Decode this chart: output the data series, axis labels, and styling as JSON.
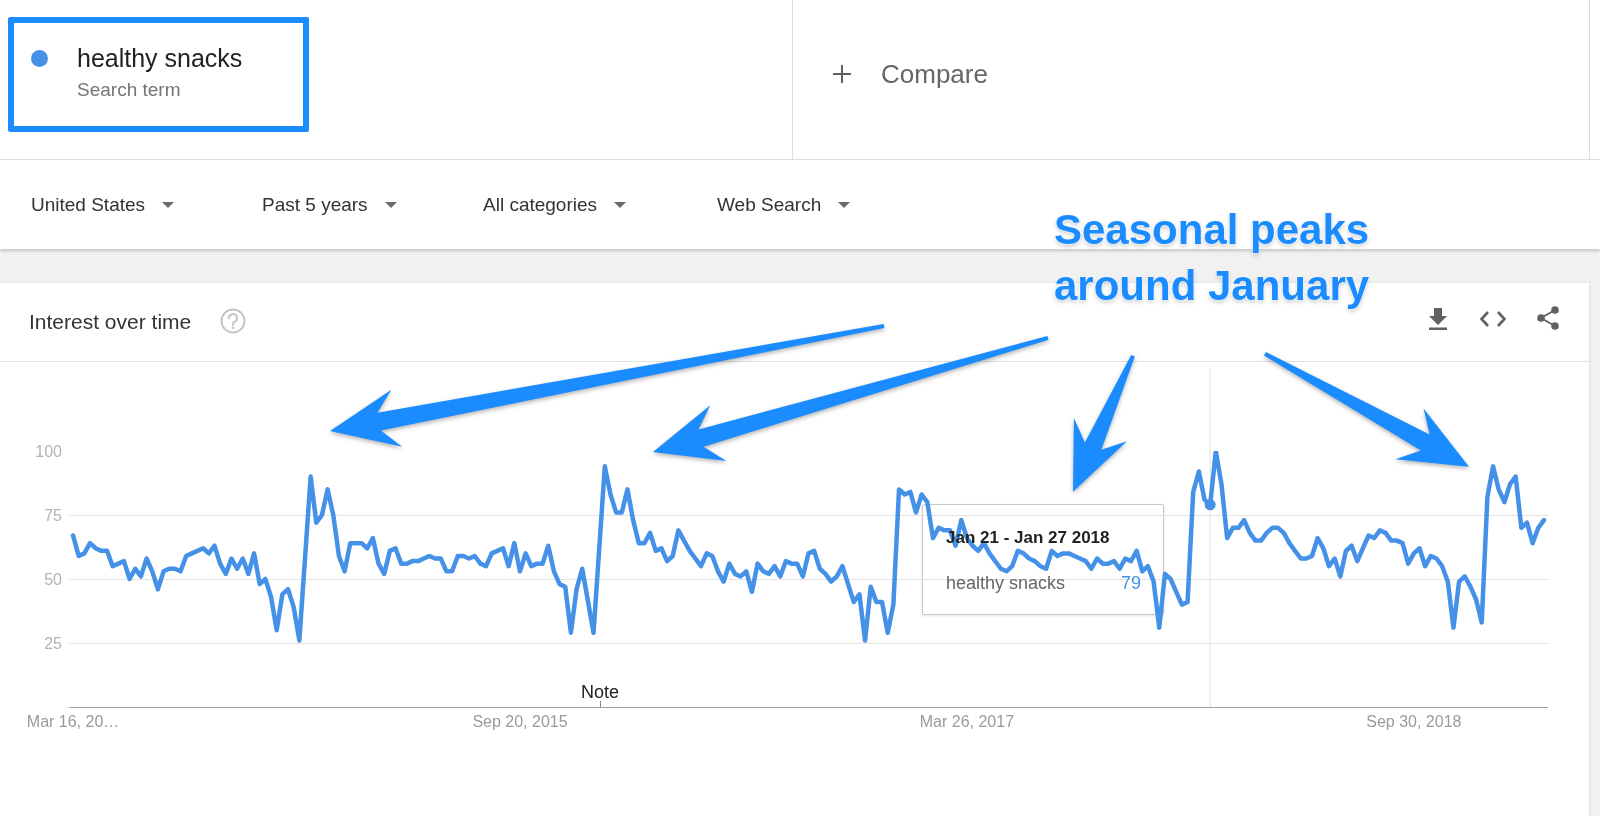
{
  "chart_data": {
    "type": "line",
    "title": "Interest over time",
    "annotations": [
      "Search term",
      "Compare",
      "United States",
      "Past 5 years",
      "All categories",
      "Web Search",
      "Seasonal peaks\naround January",
      "Note",
      "Jan 21 - Jan 27 2018",
      "79"
    ],
    "series": [
      {
        "name": "healthy snacks",
        "color": "#4691e8",
        "x": [
          "2014-03-16",
          "2014-03-23",
          "2014-03-30",
          "2014-04-06",
          "2014-04-13",
          "2014-04-20",
          "2014-04-27",
          "2014-05-04",
          "2014-05-11",
          "2014-05-18",
          "2014-05-25",
          "2014-06-01",
          "2014-06-08",
          "2014-06-15",
          "2014-06-22",
          "2014-06-29",
          "2014-07-06",
          "2014-07-13",
          "2014-07-20",
          "2014-07-27",
          "2014-08-03",
          "2014-08-10",
          "2014-08-17",
          "2014-08-24",
          "2014-08-31",
          "2014-09-07",
          "2014-09-14",
          "2014-09-21",
          "2014-09-28",
          "2014-10-05",
          "2014-10-12",
          "2014-10-19",
          "2014-10-26",
          "2014-11-02",
          "2014-11-09",
          "2014-11-16",
          "2014-11-23",
          "2014-11-30",
          "2014-12-07",
          "2014-12-14",
          "2014-12-21",
          "2015-01-04",
          "2015-01-11",
          "2015-01-18",
          "2015-01-25",
          "2015-02-01",
          "2015-02-08",
          "2015-02-15",
          "2015-02-22",
          "2015-03-01",
          "2015-03-08",
          "2015-03-15",
          "2015-03-22",
          "2015-03-29",
          "2015-04-05",
          "2015-04-12",
          "2015-04-19",
          "2015-04-26",
          "2015-05-03",
          "2015-05-10",
          "2015-05-17",
          "2015-05-24",
          "2015-05-31",
          "2015-06-07",
          "2015-06-14",
          "2015-06-21",
          "2015-06-28",
          "2015-07-05",
          "2015-07-12",
          "2015-07-19",
          "2015-07-26",
          "2015-08-02",
          "2015-08-09",
          "2015-08-16",
          "2015-08-23",
          "2015-08-30",
          "2015-09-06",
          "2015-09-13",
          "2015-09-20",
          "2015-09-27",
          "2015-10-04",
          "2015-10-11",
          "2015-10-18",
          "2015-10-25",
          "2015-11-01",
          "2015-11-08",
          "2015-11-15",
          "2015-11-22",
          "2015-11-29",
          "2015-12-06",
          "2015-12-20",
          "2016-01-03",
          "2016-01-10",
          "2016-01-17",
          "2016-01-24",
          "2016-01-31",
          "2016-02-07",
          "2016-02-14",
          "2016-02-21",
          "2016-02-28",
          "2016-03-06",
          "2016-03-13",
          "2016-03-20",
          "2016-03-27",
          "2016-04-03",
          "2016-04-10",
          "2016-04-17",
          "2016-04-24",
          "2016-05-01",
          "2016-05-08",
          "2016-05-15",
          "2016-05-22",
          "2016-05-29",
          "2016-06-05",
          "2016-06-12",
          "2016-06-19",
          "2016-06-26",
          "2016-07-03",
          "2016-07-10",
          "2016-07-17",
          "2016-07-24",
          "2016-07-31",
          "2016-08-07",
          "2016-08-14",
          "2016-08-21",
          "2016-08-28",
          "2016-09-04",
          "2016-09-11",
          "2016-09-18",
          "2016-09-25",
          "2016-10-02",
          "2016-10-09",
          "2016-10-16",
          "2016-10-23",
          "2016-10-30",
          "2016-11-06",
          "2016-11-13",
          "2016-11-20",
          "2016-11-27",
          "2016-12-04",
          "2016-12-11",
          "2016-12-18",
          "2016-12-25",
          "2017-01-01",
          "2017-01-08",
          "2017-01-15",
          "2017-01-22",
          "2017-01-29",
          "2017-02-05",
          "2017-02-12",
          "2017-02-19",
          "2017-02-26",
          "2017-03-05",
          "2017-03-12",
          "2017-03-19",
          "2017-03-26",
          "2017-04-02",
          "2017-04-09",
          "2017-04-16",
          "2017-04-23",
          "2017-04-30",
          "2017-05-07",
          "2017-05-14",
          "2017-05-21",
          "2017-05-28",
          "2017-06-04",
          "2017-06-11",
          "2017-06-18",
          "2017-06-25",
          "2017-07-02",
          "2017-07-09",
          "2017-07-16",
          "2017-07-23",
          "2017-07-30",
          "2017-08-06",
          "2017-08-13",
          "2017-08-20",
          "2017-08-27",
          "2017-09-03",
          "2017-09-10",
          "2017-09-17",
          "2017-09-24",
          "2017-10-01",
          "2017-10-08",
          "2017-10-15",
          "2017-10-22",
          "2017-10-29",
          "2017-11-05",
          "2017-11-12",
          "2017-11-19",
          "2017-11-26",
          "2017-12-03",
          "2017-12-10",
          "2017-12-17",
          "2017-12-24",
          "2017-12-31",
          "2018-01-07",
          "2018-01-14",
          "2018-01-21",
          "2018-01-28",
          "2018-02-04",
          "2018-02-11",
          "2018-02-18",
          "2018-02-25",
          "2018-03-04",
          "2018-03-11",
          "2018-03-18",
          "2018-03-25",
          "2018-04-01",
          "2018-04-08",
          "2018-04-15",
          "2018-04-22",
          "2018-04-29",
          "2018-05-06",
          "2018-05-13",
          "2018-05-20",
          "2018-05-27",
          "2018-06-03",
          "2018-06-10",
          "2018-06-17",
          "2018-06-24",
          "2018-07-01",
          "2018-07-08",
          "2018-07-15",
          "2018-07-22",
          "2018-07-29",
          "2018-08-05",
          "2018-08-12",
          "2018-08-19",
          "2018-08-26",
          "2018-09-02",
          "2018-09-09",
          "2018-09-16",
          "2018-09-23",
          "2018-09-30",
          "2018-10-07",
          "2018-10-14",
          "2018-10-21",
          "2018-10-28",
          "2018-11-04",
          "2018-11-11",
          "2018-11-18",
          "2018-11-25",
          "2018-12-02",
          "2018-12-09",
          "2018-12-16",
          "2018-12-23",
          "2018-12-30",
          "2019-01-06",
          "2019-01-13",
          "2019-01-20",
          "2019-01-27",
          "2019-02-03",
          "2019-02-10",
          "2019-02-17",
          "2019-02-24",
          "2019-03-03",
          "2019-03-10"
        ],
        "values": [
          67,
          59,
          60,
          64,
          62,
          61,
          61,
          55,
          56,
          57,
          50,
          54,
          51,
          58,
          53,
          46,
          53,
          54,
          54,
          53,
          59,
          60,
          61,
          62,
          60,
          63,
          56,
          52,
          58,
          54,
          58,
          52,
          60,
          48,
          50,
          43,
          30,
          44,
          46,
          39,
          26,
          90,
          72,
          75,
          85,
          75,
          59,
          53,
          64,
          64,
          64,
          62,
          66,
          56,
          52,
          61,
          62,
          56,
          56,
          57,
          57,
          58,
          59,
          58,
          58,
          53,
          53,
          59,
          59,
          58,
          59,
          56,
          55,
          60,
          61,
          62,
          55,
          64,
          53,
          60,
          55,
          56,
          56,
          63,
          53,
          48,
          47,
          29,
          46,
          54,
          29,
          94,
          83,
          76,
          76,
          85,
          73,
          64,
          64,
          68,
          61,
          62,
          57,
          59,
          69,
          65,
          61,
          58,
          55,
          60,
          59,
          53,
          49,
          56,
          52,
          51,
          53,
          45,
          56,
          53,
          52,
          55,
          51,
          57,
          56,
          56,
          51,
          60,
          61,
          54,
          52,
          49,
          51,
          55,
          48,
          41,
          44,
          26,
          47,
          41,
          41,
          29,
          40,
          85,
          83,
          84,
          76,
          83,
          80,
          66,
          70,
          69,
          69,
          63,
          73,
          66,
          63,
          61,
          64,
          60,
          57,
          54,
          53,
          55,
          61,
          60,
          58,
          57,
          55,
          54,
          61,
          59,
          60,
          60,
          59,
          58,
          57,
          54,
          58,
          56,
          56,
          57,
          54,
          58,
          57,
          61,
          53,
          55,
          49,
          31,
          52,
          50,
          45,
          40,
          41,
          84,
          92,
          81,
          79,
          100,
          87,
          66,
          70,
          70,
          73,
          68,
          65,
          65,
          68,
          70,
          70,
          68,
          64,
          61,
          58,
          58,
          59,
          66,
          62,
          55,
          58,
          51,
          61,
          63,
          57,
          62,
          67,
          66,
          69,
          68,
          65,
          65,
          64,
          56,
          60,
          62,
          55,
          59,
          58,
          55,
          49,
          31,
          49,
          51,
          47,
          42,
          33,
          82,
          94,
          85,
          80,
          87,
          90,
          70,
          72,
          64,
          70,
          73
        ]
      }
    ],
    "xlim": [
      "2014-03-11",
      "2019-03-15"
    ],
    "xticks": [
      {
        "value": "2014-03-16",
        "label": "Mar 16, 20…"
      },
      {
        "value": "2015-09-20",
        "label": "Sep 20, 2015"
      },
      {
        "value": "2017-03-26",
        "label": "Mar 26, 2017"
      },
      {
        "value": "2018-09-30",
        "label": "Sep 30, 2018"
      }
    ],
    "ylim": [
      0,
      100
    ],
    "yticks": [
      25,
      50,
      75,
      100
    ],
    "grid": "y",
    "legend": "top left",
    "ref_lines": [
      {
        "axis": "x",
        "value": "2018-01-21",
        "color": "#ececec"
      }
    ]
  }
}
